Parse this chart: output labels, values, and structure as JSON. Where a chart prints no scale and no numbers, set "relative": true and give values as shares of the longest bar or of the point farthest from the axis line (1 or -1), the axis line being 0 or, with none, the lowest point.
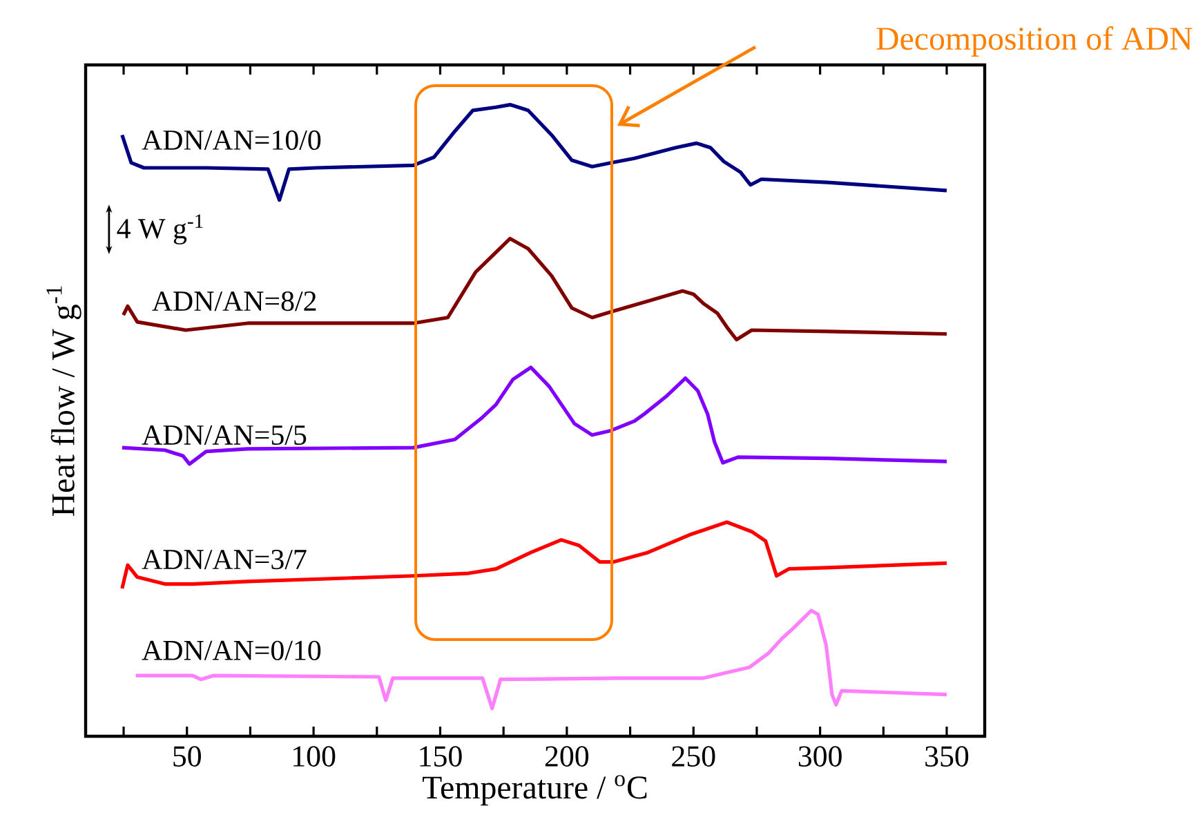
{
  "chart_data": {
    "type": "line",
    "relative": true,
    "xlabel": "Temperature / $^{o}$C",
    "ylabel": "Heat flow / W g$^{-1}$",
    "xlim": [
      10,
      365
    ],
    "xticks": [
      {
        "value": 25,
        "label": null
      },
      50,
      {
        "value": 75,
        "label": null
      },
      100,
      {
        "value": 125,
        "label": null
      },
      150,
      {
        "value": 175,
        "label": null
      },
      200,
      {
        "value": 225,
        "label": null
      },
      250,
      {
        "value": 275,
        "label": null
      },
      300,
      {
        "value": 325,
        "label": null
      },
      350
    ],
    "legend": false,
    "marker": "none",
    "line_style": "solid",
    "grid": false,
    "annotations": [
      "4 W g$^{-1}$",
      "Decomposition of ADN"
    ],
    "series": [
      {
        "name": "ADN/AN=10/0",
        "color": "#000080",
        "x": [
          24.4,
          28,
          33,
          57.6,
          82,
          86.5,
          90.3,
          101,
          139.4,
          147.6,
          155.8,
          162.9,
          172,
          177.6,
          184.7,
          194,
          202,
          210,
          217.4,
          226.7,
          243,
          251.2,
          256.7,
          262,
          268.6,
          272.5,
          276.8,
          303,
          350
        ],
        "values": [
          0.952,
          0.908,
          0.9,
          0.9,
          0.898,
          0.849,
          0.898,
          0.9,
          0.904,
          0.917,
          0.958,
          0.991,
          0.996,
          1.0,
          0.991,
          0.952,
          0.912,
          0.902,
          0.908,
          0.915,
          0.932,
          0.939,
          0.932,
          0.91,
          0.893,
          0.873,
          0.882,
          0.877,
          0.864
        ]
      },
      {
        "name": "ADN/AN=8/2",
        "color": "#800000",
        "x": [
          24.9,
          26.6,
          30.4,
          49.5,
          74,
          139.4,
          153,
          164,
          177.6,
          184.7,
          194,
          202,
          210,
          217.4,
          232,
          245.7,
          250,
          254,
          259.4,
          263.7,
          267,
          273,
          303,
          350
        ],
        "values": [
          0.667,
          0.681,
          0.656,
          0.643,
          0.654,
          0.654,
          0.663,
          0.735,
          0.788,
          0.772,
          0.729,
          0.678,
          0.663,
          0.672,
          0.689,
          0.705,
          0.7,
          0.685,
          0.67,
          0.645,
          0.628,
          0.643,
          0.641,
          0.637
        ]
      },
      {
        "name": "ADN/AN=5/5",
        "color": "#8000ff",
        "x": [
          24.4,
          41.3,
          48.4,
          51,
          57.6,
          74,
          139.4,
          155.8,
          166.7,
          172,
          178.7,
          185.8,
          193,
          203,
          210,
          217.4,
          226.7,
          230.5,
          239.2,
          246.8,
          251.7,
          255.6,
          258.3,
          261.6,
          267.6,
          303,
          350
        ],
        "values": [
          0.457,
          0.453,
          0.444,
          0.431,
          0.451,
          0.455,
          0.457,
          0.47,
          0.505,
          0.525,
          0.565,
          0.584,
          0.554,
          0.495,
          0.477,
          0.484,
          0.499,
          0.51,
          0.538,
          0.567,
          0.547,
          0.51,
          0.466,
          0.433,
          0.442,
          0.44,
          0.435
        ]
      },
      {
        "name": "ADN/AN=3/7",
        "color": "#ff0000",
        "x": [
          24.4,
          26.6,
          30.4,
          41.3,
          52.2,
          74,
          139.4,
          161.2,
          172.1,
          185.8,
          197.8,
          204.8,
          213,
          218.5,
          232,
          248.5,
          263.2,
          273,
          278.5,
          282.8,
          287.7,
          303,
          350
        ],
        "values": [
          0.234,
          0.271,
          0.252,
          0.241,
          0.241,
          0.245,
          0.254,
          0.258,
          0.265,
          0.291,
          0.311,
          0.302,
          0.276,
          0.276,
          0.291,
          0.319,
          0.339,
          0.324,
          0.309,
          0.254,
          0.265,
          0.267,
          0.274
        ]
      },
      {
        "name": "ADN/AN=0/10",
        "color": "#ff80ff",
        "x": [
          29.8,
          52.2,
          55.5,
          60.4,
          125.8,
          128.5,
          131.3,
          166.7,
          170.5,
          173.8,
          221,
          253.9,
          272,
          279.5,
          285,
          289.4,
          296.5,
          299.2,
          302.4,
          304.7,
          306.3,
          308.5,
          350
        ],
        "values": [
          0.096,
          0.096,
          0.09,
          0.096,
          0.094,
          0.057,
          0.092,
          0.092,
          0.044,
          0.09,
          0.092,
          0.092,
          0.109,
          0.131,
          0.155,
          0.171,
          0.199,
          0.193,
          0.144,
          0.066,
          0.05,
          0.072,
          0.066
        ]
      }
    ]
  }
}
